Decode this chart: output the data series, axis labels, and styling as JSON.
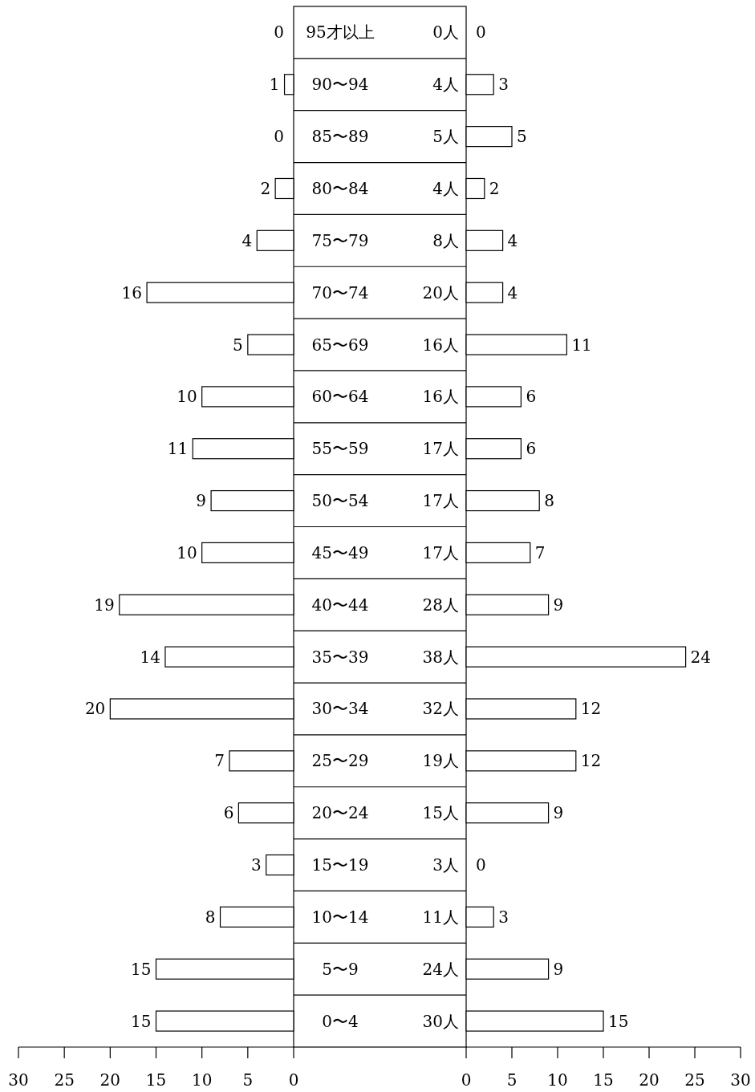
{
  "chart_data": [
    {
      "type": "bar",
      "orientation": "horizontal",
      "color": "#ffffff",
      "data_labels": true,
      "categories": [
        "95才以上",
        "90〜94",
        "85〜89",
        "80〜84",
        "75〜79",
        "70〜74",
        "65〜69",
        "60〜64",
        "55〜59",
        "50〜54",
        "45〜49",
        "40〜44",
        "35〜39",
        "30〜34",
        "25〜29",
        "20〜24",
        "15〜19",
        "10〜14",
        "5〜9",
        "0〜4"
      ],
      "values": [
        0,
        1,
        0,
        2,
        4,
        16,
        5,
        10,
        11,
        9,
        10,
        19,
        14,
        20,
        7,
        6,
        3,
        8,
        15,
        15
      ],
      "xlim": [
        30,
        0
      ],
      "xticks": [
        30,
        25,
        20,
        15,
        10,
        5,
        0
      ]
    },
    {
      "type": "bar",
      "orientation": "horizontal",
      "color": "#ffffff",
      "data_labels": true,
      "categories": [
        "0人",
        "4人",
        "5人",
        "4人",
        "8人",
        "20人",
        "16人",
        "16人",
        "17人",
        "17人",
        "17人",
        "28人",
        "38人",
        "32人",
        "19人",
        "15人",
        "3人",
        "11人",
        "24人",
        "30人"
      ],
      "values": [
        0,
        3,
        5,
        2,
        4,
        4,
        11,
        6,
        6,
        8,
        7,
        9,
        24,
        12,
        12,
        9,
        0,
        3,
        9,
        15
      ],
      "xlim": [
        0,
        30
      ],
      "xticks": [
        0,
        5,
        10,
        15,
        20,
        25,
        30
      ]
    }
  ]
}
